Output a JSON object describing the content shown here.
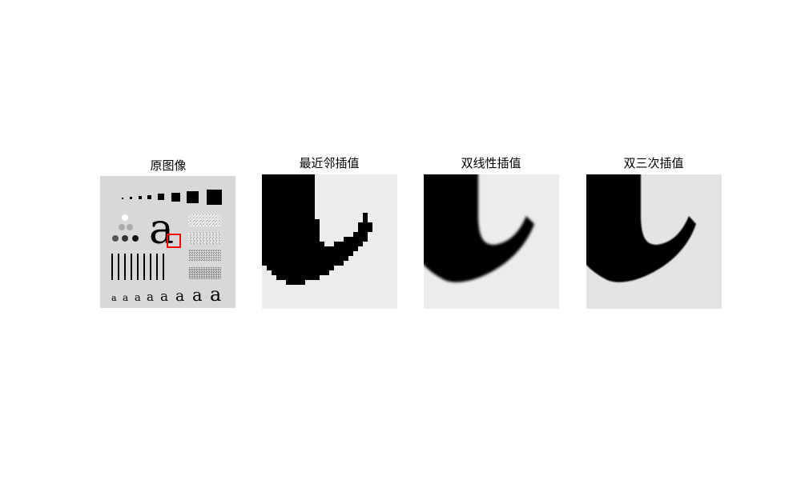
{
  "panels": [
    {
      "title": "原图像"
    },
    {
      "title": "最近邻插值"
    },
    {
      "title": "双线性插值"
    },
    {
      "title": "双三次插值"
    }
  ],
  "figure": {
    "letter_large": "a",
    "letter_row": [
      "a",
      "a",
      "a",
      "a",
      "a",
      "a",
      "a",
      "a"
    ]
  },
  "colors": {
    "background": "#ffffff",
    "original_bg": "#d8d8d8",
    "zoom_bg": "#ececec",
    "zoom_bg_bicubic": "#e4e4e4",
    "ink": "#000000",
    "highlight": "#ff0000"
  }
}
